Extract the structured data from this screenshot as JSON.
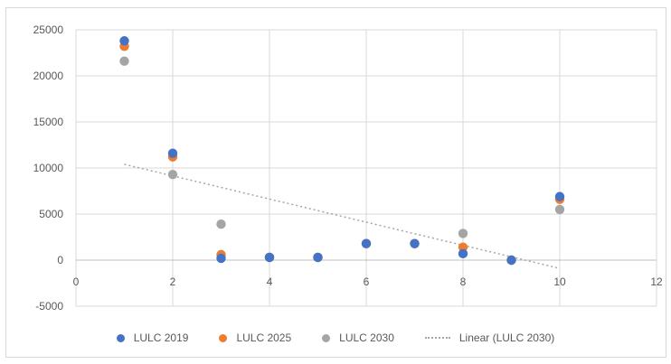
{
  "chart_data": {
    "type": "scatter",
    "title": "",
    "xlabel": "",
    "ylabel": "",
    "xlim": [
      0,
      12
    ],
    "ylim": [
      -5000,
      25000
    ],
    "x_ticks": [
      "0",
      "2",
      "4",
      "6",
      "8",
      "10",
      "12"
    ],
    "y_ticks": [
      "-5000",
      "0",
      "5000",
      "10000",
      "15000",
      "20000",
      "25000"
    ],
    "grid": true,
    "legend_position": "bottom",
    "series": [
      {
        "name": "LULC 2019",
        "color": "#4472c4",
        "x": [
          1,
          2,
          3,
          4,
          5,
          6,
          7,
          8,
          9,
          10
        ],
        "y": [
          23800,
          11600,
          200,
          300,
          300,
          1800,
          1800,
          700,
          0,
          6900
        ]
      },
      {
        "name": "LULC 2025",
        "color": "#ed7d31",
        "x": [
          1,
          2,
          3,
          4,
          5,
          6,
          7,
          8,
          9,
          10
        ],
        "y": [
          23200,
          11200,
          600,
          300,
          300,
          1800,
          1800,
          1400,
          0,
          6600
        ]
      },
      {
        "name": "LULC 2030",
        "color": "#a5a5a5",
        "x": [
          1,
          2,
          3,
          4,
          5,
          6,
          7,
          8,
          9,
          10
        ],
        "y": [
          21600,
          9300,
          3900,
          300,
          300,
          1800,
          1800,
          2900,
          0,
          5500
        ]
      }
    ],
    "trendline": {
      "name": "Linear (LULC 2030)",
      "color": "#a5a5a5",
      "style": "dotted",
      "x_start": 1,
      "y_start": 10400,
      "x_end": 10,
      "y_end": -900
    }
  }
}
